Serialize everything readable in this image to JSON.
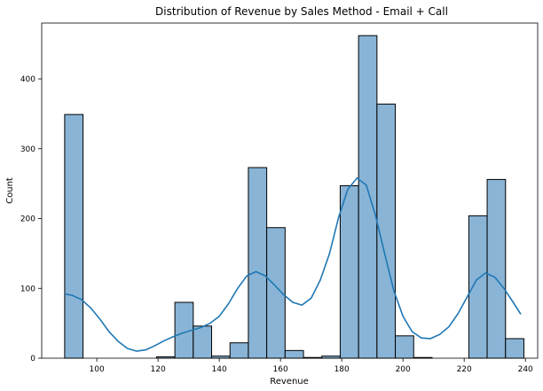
{
  "chart_data": {
    "type": "histogram",
    "title": "Distribution of Revenue by Sales Method - Email + Call",
    "xlabel": "Revenue",
    "ylabel": "Count",
    "xlim": [
      82,
      244
    ],
    "ylim": [
      0,
      480
    ],
    "xticks": [
      100,
      120,
      140,
      160,
      180,
      200,
      220,
      240
    ],
    "yticks": [
      0,
      100,
      200,
      300,
      400
    ],
    "grid": false,
    "legend": "none",
    "bar_color": "#89b4d6",
    "line_color": "#1f77b4",
    "bins": [
      {
        "x0": 89.5,
        "x1": 95.5,
        "count": 349
      },
      {
        "x0": 95.5,
        "x1": 101.5,
        "count": 0
      },
      {
        "x0": 101.5,
        "x1": 107.5,
        "count": 0
      },
      {
        "x0": 107.5,
        "x1": 113.5,
        "count": 0
      },
      {
        "x0": 113.5,
        "x1": 119.5,
        "count": 0
      },
      {
        "x0": 119.5,
        "x1": 125.5,
        "count": 2
      },
      {
        "x0": 125.5,
        "x1": 131.5,
        "count": 80
      },
      {
        "x0": 131.5,
        "x1": 137.5,
        "count": 46
      },
      {
        "x0": 137.5,
        "x1": 143.5,
        "count": 3
      },
      {
        "x0": 143.5,
        "x1": 149.5,
        "count": 22
      },
      {
        "x0": 149.5,
        "x1": 155.5,
        "count": 273
      },
      {
        "x0": 155.5,
        "x1": 161.5,
        "count": 187
      },
      {
        "x0": 161.5,
        "x1": 167.5,
        "count": 11
      },
      {
        "x0": 167.5,
        "x1": 173.5,
        "count": 1
      },
      {
        "x0": 173.5,
        "x1": 179.5,
        "count": 3
      },
      {
        "x0": 179.5,
        "x1": 185.5,
        "count": 247
      },
      {
        "x0": 185.5,
        "x1": 191.5,
        "count": 462
      },
      {
        "x0": 191.5,
        "x1": 197.5,
        "count": 364
      },
      {
        "x0": 197.5,
        "x1": 203.5,
        "count": 32
      },
      {
        "x0": 203.5,
        "x1": 209.5,
        "count": 1
      },
      {
        "x0": 209.5,
        "x1": 215.5,
        "count": 0
      },
      {
        "x0": 215.5,
        "x1": 221.5,
        "count": 0
      },
      {
        "x0": 221.5,
        "x1": 227.5,
        "count": 204
      },
      {
        "x0": 227.5,
        "x1": 233.5,
        "count": 256
      },
      {
        "x0": 233.5,
        "x1": 239.5,
        "count": 28
      }
    ],
    "kde": {
      "x": [
        89.5,
        92,
        95,
        98,
        101,
        104,
        107,
        110,
        113,
        116,
        119,
        122,
        125,
        128,
        131,
        134,
        137,
        140,
        143,
        146,
        149,
        152,
        155,
        158,
        161,
        164,
        167,
        170,
        173,
        176,
        179,
        182,
        185,
        188,
        191,
        194,
        197,
        200,
        203,
        206,
        209,
        212,
        215,
        218,
        221,
        224,
        227,
        230,
        233,
        236,
        238.5
      ],
      "y": [
        92,
        90,
        84,
        72,
        56,
        38,
        24,
        14,
        10,
        12,
        18,
        25,
        31,
        36,
        40,
        44,
        50,
        60,
        78,
        100,
        118,
        124,
        118,
        105,
        91,
        80,
        76,
        86,
        112,
        150,
        202,
        242,
        258,
        248,
        205,
        150,
        97,
        60,
        38,
        29,
        28,
        34,
        45,
        64,
        88,
        112,
        122,
        116,
        100,
        80,
        63
      ]
    }
  }
}
